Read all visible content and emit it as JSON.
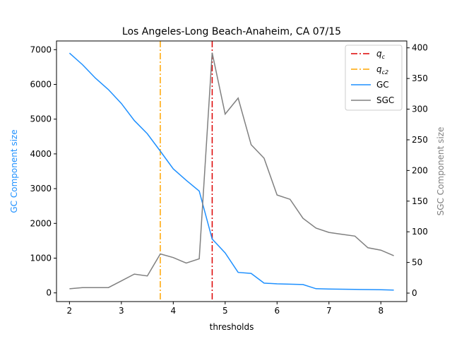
{
  "chart_data": {
    "type": "line",
    "title": "Los Angeles-Long Beach-Anaheim, CA 07/15",
    "xlabel": "thresholds",
    "ylabel_left": "GC Component size",
    "ylabel_right": "SGC Component size",
    "xlim": [
      1.75,
      8.5
    ],
    "ylim_left": [
      -250,
      7250
    ],
    "ylim_right": [
      -13.8,
      411.2
    ],
    "xticks": [
      2,
      3,
      4,
      5,
      6,
      7,
      8
    ],
    "yticks_left": [
      0,
      1000,
      2000,
      3000,
      4000,
      5000,
      6000,
      7000
    ],
    "yticks_right": [
      0,
      50,
      100,
      150,
      200,
      250,
      300,
      350,
      400
    ],
    "vlines": [
      {
        "name": "q_c",
        "sub": "c",
        "x": 4.75,
        "color": "#dd0000"
      },
      {
        "name": "q_c2",
        "sub": "c2",
        "x": 3.75,
        "color": "#ffa500"
      }
    ],
    "series": [
      {
        "name": "GC",
        "axis": "left",
        "color": "#1e90ff",
        "x": [
          2.0,
          2.25,
          2.5,
          2.75,
          3.0,
          3.25,
          3.5,
          3.75,
          4.0,
          4.25,
          4.5,
          4.75,
          5.0,
          5.25,
          5.5,
          5.75,
          6.0,
          6.25,
          6.5,
          6.75,
          7.0,
          7.25,
          7.5,
          7.75,
          8.0,
          8.25
        ],
        "y": [
          6900,
          6570,
          6180,
          5850,
          5450,
          4960,
          4580,
          4080,
          3570,
          3240,
          2930,
          1550,
          1150,
          590,
          560,
          280,
          260,
          250,
          240,
          120,
          110,
          105,
          100,
          95,
          90,
          80
        ]
      },
      {
        "name": "SGC",
        "axis": "right",
        "color": "#808080",
        "x": [
          2.0,
          2.25,
          2.5,
          2.75,
          3.0,
          3.25,
          3.5,
          3.75,
          4.0,
          4.25,
          4.5,
          4.75,
          5.0,
          5.25,
          5.5,
          5.75,
          6.0,
          6.25,
          6.5,
          6.75,
          7.0,
          7.25,
          7.5,
          7.75,
          8.0,
          8.25
        ],
        "y": [
          7,
          9,
          9,
          9,
          20,
          31,
          28,
          64,
          58,
          49,
          56,
          392,
          292,
          318,
          242,
          220,
          160,
          153,
          122,
          106,
          99,
          96,
          93,
          74,
          70,
          61
        ]
      }
    ],
    "legend": {
      "placement": "top-right",
      "entries": [
        {
          "label": "q",
          "sub": "c",
          "color": "#dd0000",
          "style": "dashdot"
        },
        {
          "label": "q",
          "sub": "c2",
          "color": "#ffa500",
          "style": "dashdot"
        },
        {
          "label": "GC",
          "sub": "",
          "color": "#1e90ff",
          "style": "solid"
        },
        {
          "label": "SGC",
          "sub": "",
          "color": "#808080",
          "style": "solid"
        }
      ]
    }
  }
}
